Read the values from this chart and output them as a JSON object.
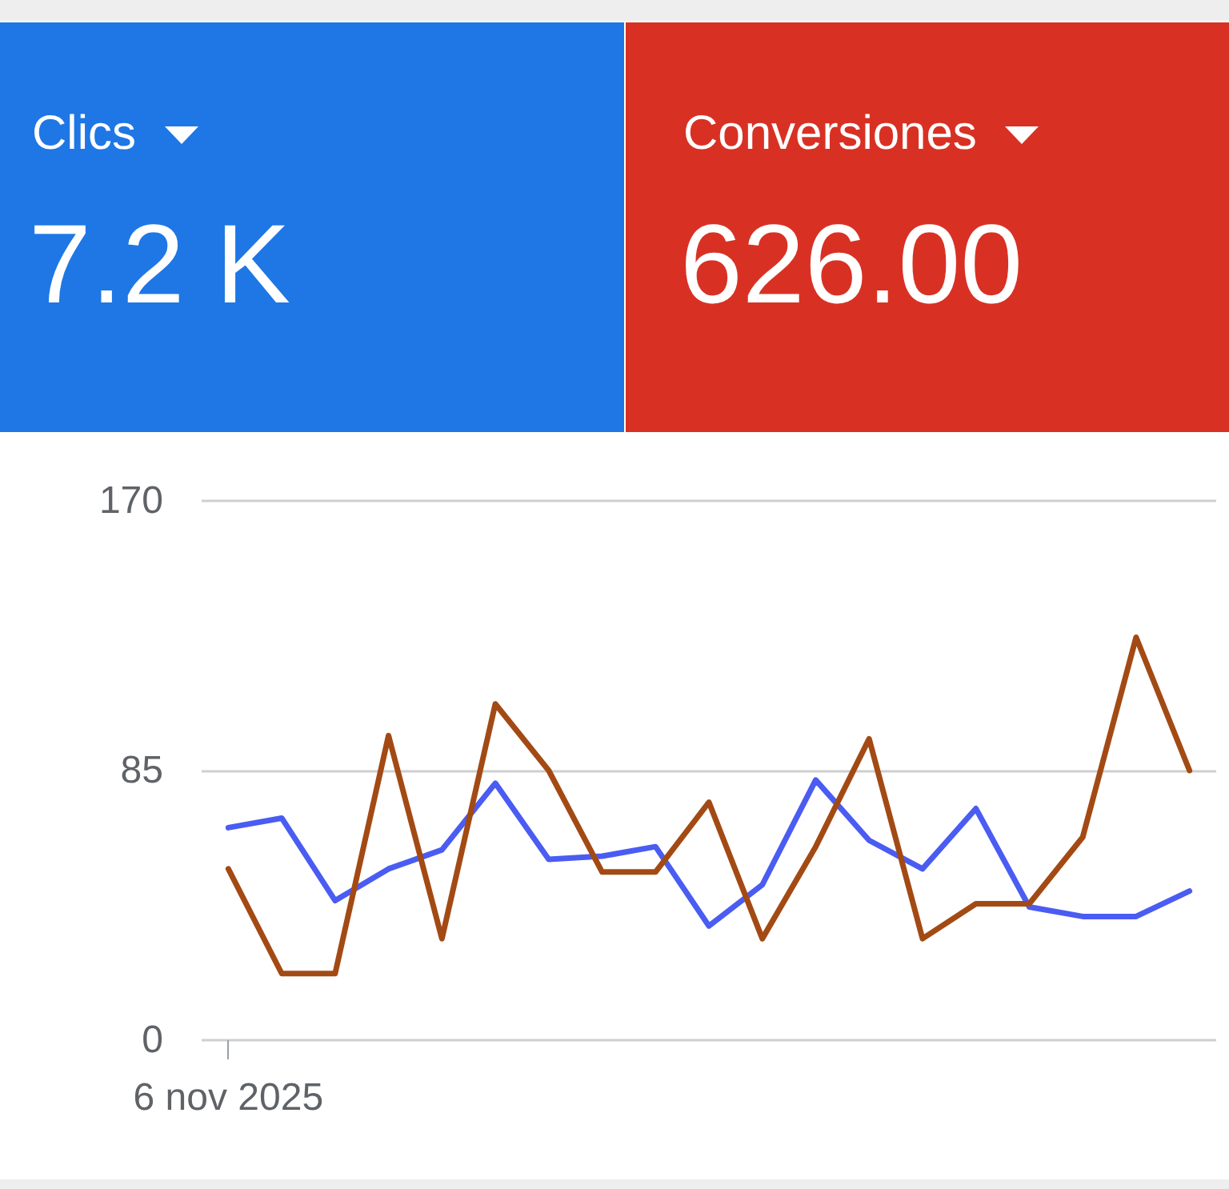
{
  "chart_data": [
    {
      "type": "other",
      "title": "Clics",
      "annotations": [
        "7.2 K"
      ]
    },
    {
      "type": "other",
      "title": "Conversiones",
      "annotations": [
        "626.00"
      ]
    },
    {
      "type": "line",
      "categories": [
        "6 nov 2025",
        null,
        null,
        null,
        null,
        null,
        null,
        null,
        null,
        null,
        null,
        null,
        null,
        null,
        null,
        null,
        null,
        null,
        null
      ],
      "series": [
        {
          "color": "#4a5cf2",
          "values": [
            67,
            70,
            44,
            54,
            60,
            81,
            57,
            58,
            61,
            36,
            49,
            82,
            63,
            54,
            73,
            42,
            39,
            39,
            47
          ]
        },
        {
          "color": "#a34a14",
          "values": [
            54,
            21,
            21,
            96,
            32,
            106,
            85,
            53,
            53,
            75,
            32,
            61,
            95,
            32,
            43,
            43,
            64,
            127,
            85
          ]
        }
      ],
      "ylim": [
        0,
        170
      ],
      "yticks": [
        0,
        85,
        170
      ],
      "grid": "y",
      "marker": "none",
      "line_style": "solid"
    }
  ]
}
